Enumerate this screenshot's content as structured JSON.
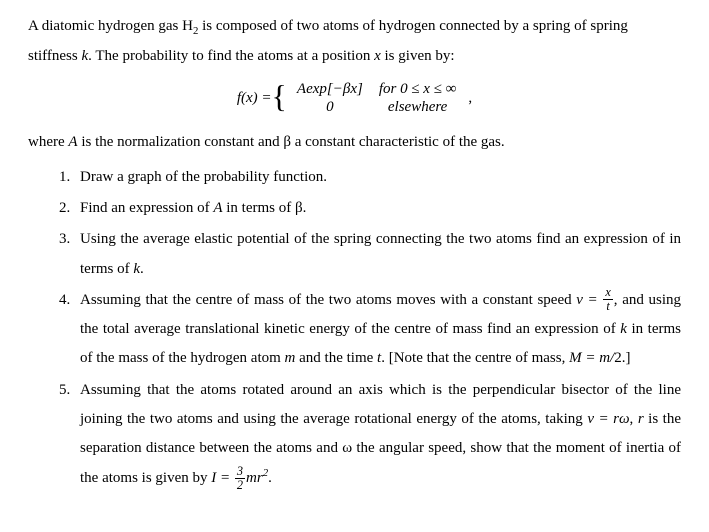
{
  "intro": {
    "p1_a": "A diatomic hydrogen gas H",
    "p1_sub": "2",
    "p1_b": " is composed of two atoms of hydrogen connected by a spring of spring stiffness ",
    "p1_k": "k",
    "p1_c": ". The probability to find the atoms at a position ",
    "p1_x": "x",
    "p1_d": " is given by:"
  },
  "formula": {
    "lhs": "f(x) = ",
    "piece1_expr": "Aexp[−βx]",
    "piece1_cond": "for 0 ≤ x ≤ ∞",
    "piece2_expr": "0",
    "piece2_cond": "elsewhere",
    "tail": ","
  },
  "intro2": {
    "a": "where ",
    "A": "A",
    "b": " is the normalization constant and β a constant characteristic of the gas."
  },
  "items": {
    "i1": "Draw a graph of the probability function.",
    "i2_a": "Find an expression of ",
    "i2_A": "A",
    "i2_b": " in terms of β.",
    "i3_a": "Using the average elastic potential of the spring connecting the two atoms find an expression of in terms of ",
    "i3_k": "k",
    "i3_b": ".",
    "i4_a": "Assuming that the centre of mass of the two atoms moves with a constant speed ",
    "i4_v": "v = ",
    "i4_frac_num": "x",
    "i4_frac_den": "t",
    "i4_b": ", and using the total average translational kinetic energy of the centre of mass find an expression of ",
    "i4_k": "k",
    "i4_c": " in terms of the mass of the hydrogen atom ",
    "i4_m": "m",
    "i4_d": " and the time ",
    "i4_t": "t",
    "i4_e": ". [Note that the centre of mass, ",
    "i4_M": "M = m/",
    "i4_f": "2.]",
    "i5_a": "Assuming that the atoms rotated around an axis which is the perpendicular bisector of the line joining the two atoms and using the average rotational energy of the atoms, taking ",
    "i5_eq": "v = rω",
    "i5_b": ", ",
    "i5_r": "r",
    "i5_c": " is the separation distance between the atoms and ω the angular speed, show that the moment of inertia of the atoms is given by ",
    "i5_I": "I = ",
    "i5_frac_num": "3",
    "i5_frac_den": "2",
    "i5_mr": "mr",
    "i5_sq": "2",
    "i5_d": "."
  }
}
